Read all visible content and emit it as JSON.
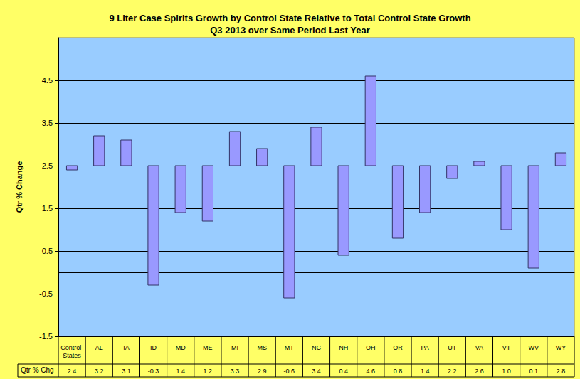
{
  "chart_data": {
    "type": "bar",
    "title": "9 Liter Case Spirits Growth by Control State Relative to Total Control State Growth",
    "subtitle": "Q3 2013 over Same Period Last Year",
    "y_label": "Qtr % Change",
    "table_label": "Qtr % Chg",
    "categories": [
      "Control States",
      "AL",
      "IA",
      "ID",
      "MD",
      "ME",
      "MI",
      "MS",
      "MT",
      "NC",
      "NH",
      "OH",
      "OR",
      "PA",
      "UT",
      "VA",
      "VT",
      "WV",
      "WY"
    ],
    "values": [
      2.4,
      3.2,
      3.1,
      -0.3,
      1.4,
      1.2,
      3.3,
      2.9,
      -0.6,
      3.4,
      0.4,
      4.6,
      0.8,
      1.4,
      2.2,
      2.6,
      1.0,
      0.1,
      2.8
    ],
    "value_labels": [
      "2.4",
      "3.2",
      "3.1",
      "-0.3",
      "1.4",
      "1.2",
      "3.3",
      "2.9",
      "-0.6",
      "3.4",
      "0.4",
      "4.6",
      "0.8",
      "1.4",
      "2.2",
      "2.6",
      "1.0",
      "0.1",
      "2.8"
    ],
    "baseline": 2.5,
    "color": "#9999FF",
    "ylim": [
      -1.5,
      5.5
    ],
    "yticks": [
      -1.5,
      -0.5,
      0.5,
      1.5,
      2.5,
      3.5,
      4.5
    ],
    "grid": true
  }
}
